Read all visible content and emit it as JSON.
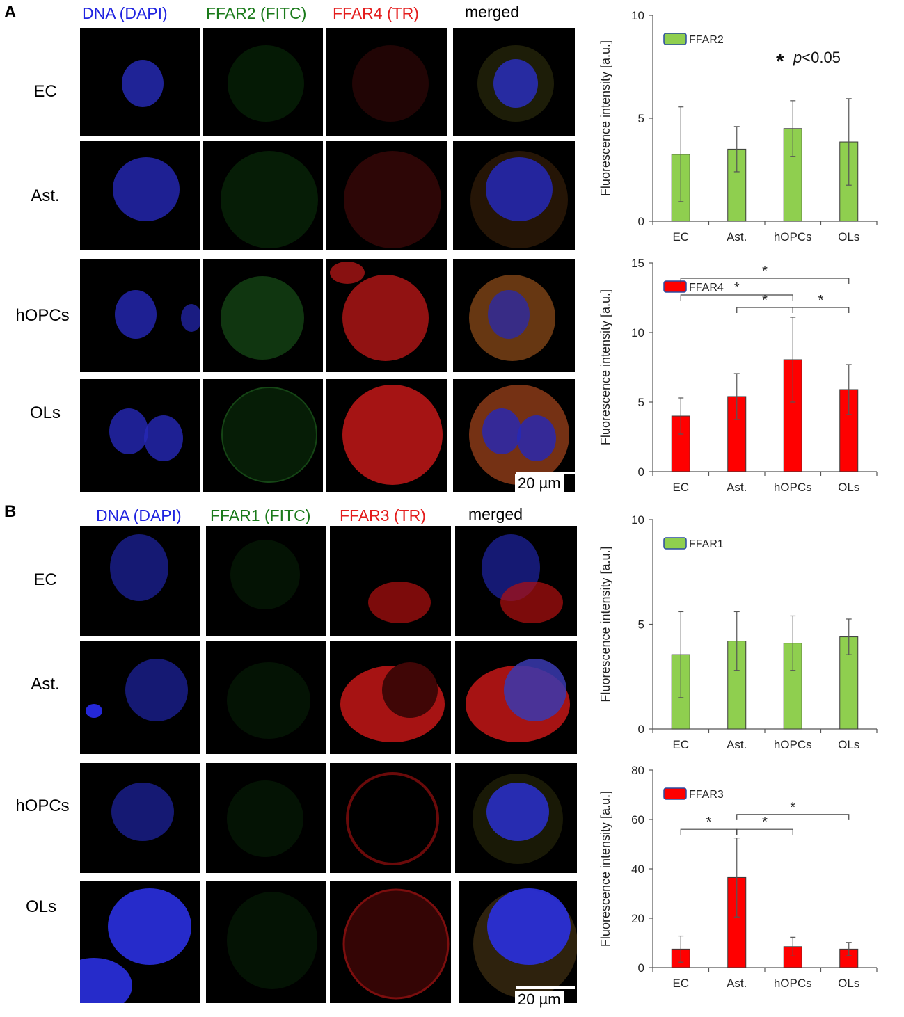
{
  "panels": [
    {
      "letter": "A",
      "column_headers": [
        {
          "text": "DNA (DAPI)",
          "color": "#1f23e0"
        },
        {
          "text": "FFAR2 (FITC)",
          "color": "#1a7a1a"
        },
        {
          "text": "FFAR4 (TR)",
          "color": "#e41c1c"
        },
        {
          "text": "merged",
          "color": "#000000"
        }
      ],
      "row_labels": [
        "EC",
        "Ast.",
        "hOPCs",
        "OLs"
      ],
      "scale_bar": "20 µm"
    },
    {
      "letter": "B",
      "column_headers": [
        {
          "text": "DNA (DAPI)",
          "color": "#1f23e0"
        },
        {
          "text": "FFAR1 (FITC)",
          "color": "#1a7a1a"
        },
        {
          "text": "FFAR3 (TR)",
          "color": "#e41c1c"
        },
        {
          "text": "merged",
          "color": "#000000"
        }
      ],
      "row_labels": [
        "EC",
        "Ast.",
        "hOPCs",
        "OLs"
      ],
      "scale_bar": "20 µm"
    }
  ],
  "chart_data": [
    {
      "type": "bar",
      "panel": "A",
      "categories": [
        "EC",
        "Ast.",
        "hOPCs",
        "OLs"
      ],
      "series": [
        {
          "name": "FFAR2",
          "values": [
            3.25,
            3.5,
            4.5,
            3.85
          ],
          "errors": [
            2.3,
            1.1,
            1.35,
            2.1
          ],
          "color": "#8fcf4f"
        }
      ],
      "ylabel": "Fluorescence intensity [a.u.]",
      "ylim": [
        0,
        10
      ],
      "yticks": [
        0,
        5,
        10
      ],
      "annotation": "p<0.05",
      "annotation_star": "*",
      "significance": []
    },
    {
      "type": "bar",
      "panel": "A",
      "categories": [
        "EC",
        "Ast.",
        "hOPCs",
        "OLs"
      ],
      "series": [
        {
          "name": "FFAR4",
          "values": [
            4.0,
            5.4,
            8.05,
            5.9
          ],
          "errors": [
            1.3,
            1.65,
            3.05,
            1.8
          ],
          "color": "#ff0000"
        }
      ],
      "ylabel": "Fluorescence intensity [a.u.]",
      "ylim": [
        0,
        15
      ],
      "yticks": [
        0,
        5,
        10,
        15
      ],
      "significance": [
        {
          "from": 0,
          "to": 3,
          "level": 13.9,
          "label": "*"
        },
        {
          "from": 0,
          "to": 2,
          "level": 12.7,
          "label": "*"
        },
        {
          "from": 1,
          "to": 2,
          "level": 11.8,
          "label": "*"
        },
        {
          "from": 2,
          "to": 3,
          "level": 11.8,
          "label": "*"
        }
      ]
    },
    {
      "type": "bar",
      "panel": "B",
      "categories": [
        "EC",
        "Ast.",
        "hOPCs",
        "OLs"
      ],
      "series": [
        {
          "name": "FFAR1",
          "values": [
            3.55,
            4.2,
            4.1,
            4.4
          ],
          "errors": [
            2.05,
            1.4,
            1.3,
            0.85
          ],
          "color": "#8fcf4f"
        }
      ],
      "ylabel": "Fluorescence intensity [a.u.]",
      "ylim": [
        0,
        10
      ],
      "yticks": [
        0,
        5,
        10
      ],
      "significance": []
    },
    {
      "type": "bar",
      "panel": "B",
      "categories": [
        "EC",
        "Ast.",
        "hOPCs",
        "OLs"
      ],
      "series": [
        {
          "name": "FFAR3",
          "values": [
            7.5,
            36.5,
            8.5,
            7.5
          ],
          "errors": [
            5.3,
            16.0,
            3.8,
            2.7
          ],
          "color": "#ff0000"
        }
      ],
      "ylabel": "Fluorescence intensity [a.u.]",
      "ylim": [
        0,
        80
      ],
      "yticks": [
        0,
        20,
        40,
        60,
        80
      ],
      "significance": [
        {
          "from": 0,
          "to": 1,
          "level": 56,
          "label": "*"
        },
        {
          "from": 1,
          "to": 2,
          "level": 56,
          "label": "*"
        },
        {
          "from": 1,
          "to": 3,
          "level": 62,
          "label": "*"
        }
      ]
    }
  ]
}
